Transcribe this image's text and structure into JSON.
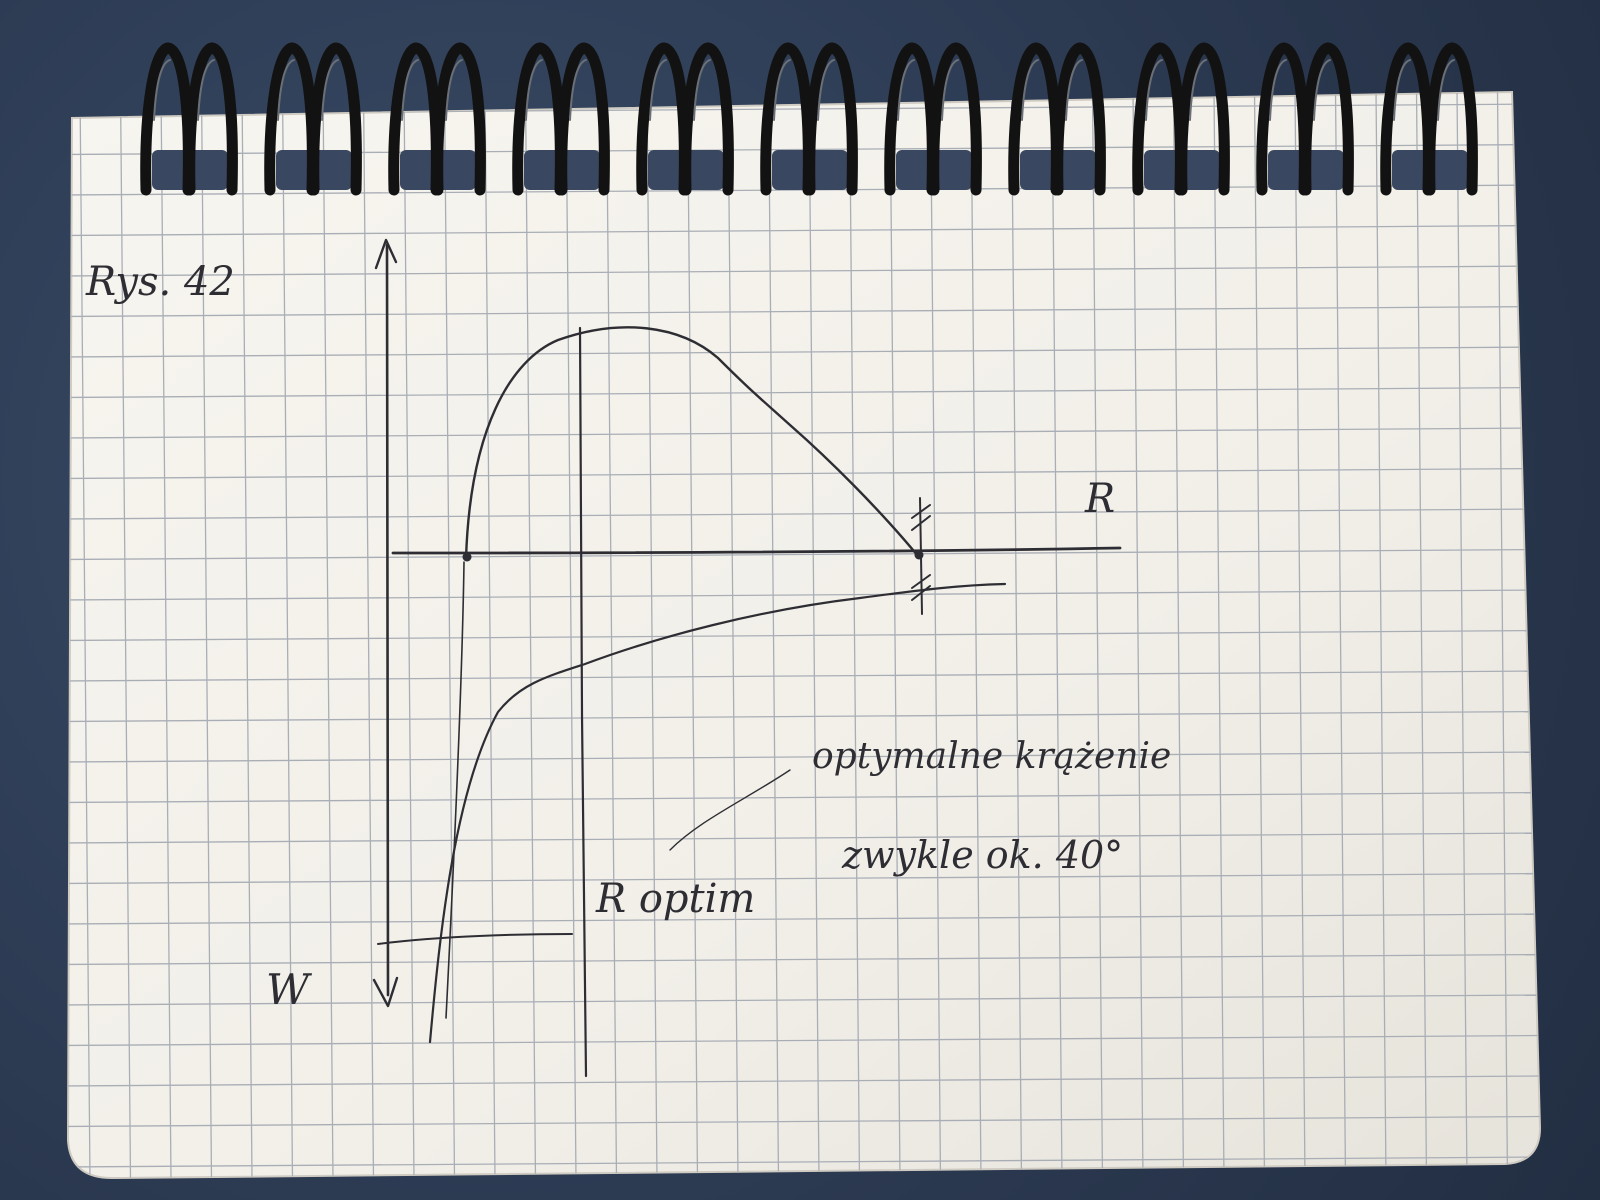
{
  "colors": {
    "desk": "#2f3f57",
    "paper": "#f4f2ec",
    "grid": "#a9aeb6",
    "pencil": "#2d2d33",
    "ring": "#121212"
  },
  "labels": {
    "figure_ref": "Rys. 42",
    "r_axis": "R",
    "w_axis": "W",
    "r_opt": "R optim",
    "note_line1": "optymalne krążenie",
    "note_line2": "zwykle ok. 40°"
  }
}
